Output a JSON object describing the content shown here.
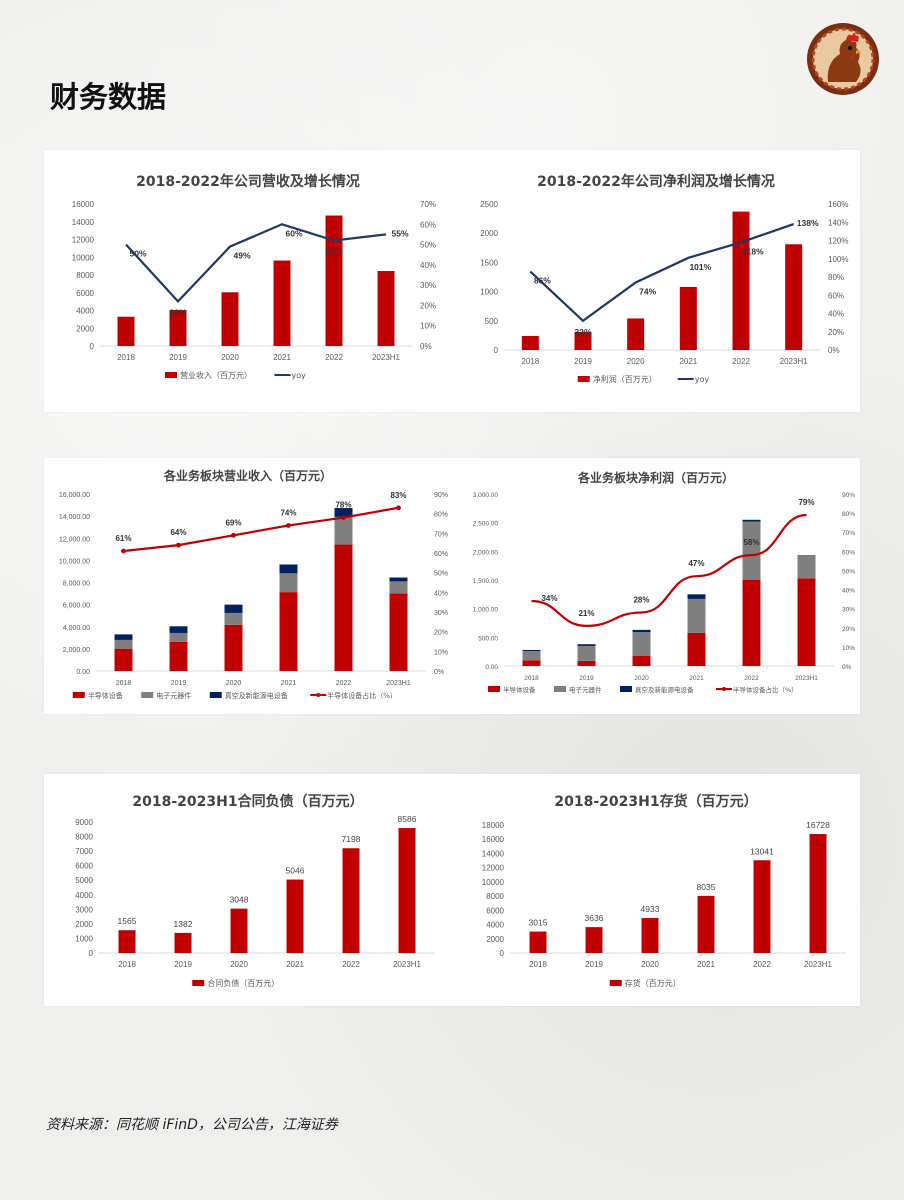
{
  "page": {
    "title": "财务数据",
    "source": "资料来源：同花顺 iFinD，公司公告，江海证券",
    "logo_icon": "rooster-seal-logo"
  },
  "colors": {
    "bar_red": "#c00000",
    "line_navy": "#1f3864",
    "line_red": "#c00000",
    "bar_grey": "#7f7f7f",
    "bar_navy": "#002060"
  },
  "chart_data": [
    {
      "id": "revenue",
      "type": "bar",
      "title": "2018-2022年公司营收及增长情况",
      "categories": [
        "2018",
        "2019",
        "2020",
        "2021",
        "2022",
        "2023H1"
      ],
      "series": [
        {
          "name": "营业收入（百万元）",
          "type": "bar",
          "axis": "left",
          "values": [
            3300,
            4050,
            6050,
            9630,
            14700,
            8450
          ]
        },
        {
          "name": "yoy",
          "type": "line",
          "axis": "right",
          "values": [
            0.5,
            0.22,
            0.49,
            0.6,
            0.52,
            0.55
          ],
          "labels": [
            "50%",
            "22%",
            "49%",
            "60%",
            "52%",
            "55%"
          ]
        }
      ],
      "y_ticks": [
        "0",
        "2000",
        "4000",
        "6000",
        "8000",
        "10000",
        "12000",
        "14000",
        "16000"
      ],
      "y2_ticks": [
        "0%",
        "10%",
        "20%",
        "30%",
        "40%",
        "50%",
        "60%",
        "70%"
      ],
      "ylim": [
        0,
        16000
      ],
      "y2lim": [
        0,
        0.7
      ],
      "legend": "bottom"
    },
    {
      "id": "profit",
      "type": "bar",
      "title": "2018-2022年公司净利润及增长情况",
      "categories": [
        "2018",
        "2019",
        "2020",
        "2021",
        "2022",
        "2023H1"
      ],
      "series": [
        {
          "name": "净利润（百万元）",
          "type": "bar",
          "axis": "left",
          "values": [
            240,
            310,
            540,
            1080,
            2370,
            1810
          ]
        },
        {
          "name": "yoy",
          "type": "line",
          "axis": "right",
          "values": [
            0.86,
            0.32,
            0.74,
            1.01,
            1.18,
            1.38
          ],
          "labels": [
            "86%",
            "32%",
            "74%",
            "101%",
            "118%",
            "138%"
          ]
        }
      ],
      "y_ticks": [
        "0",
        "500",
        "1000",
        "1500",
        "2000",
        "2500"
      ],
      "y2_ticks": [
        "0%",
        "20%",
        "40%",
        "60%",
        "80%",
        "100%",
        "120%",
        "140%",
        "160%"
      ],
      "ylim": [
        0,
        2500
      ],
      "y2lim": [
        0,
        1.6
      ],
      "legend": "bottom"
    },
    {
      "id": "segment-revenue",
      "type": "bar",
      "stacked": true,
      "title": "各业务板块营业收入（百万元）",
      "categories": [
        "2018",
        "2019",
        "2020",
        "2021",
        "2022",
        "2023H1"
      ],
      "series": [
        {
          "name": "半导体设备",
          "type": "bar",
          "axis": "left",
          "values": [
            2020,
            2640,
            4180,
            7130,
            11430,
            7000
          ]
        },
        {
          "name": "电子元器件",
          "type": "bar",
          "axis": "left",
          "values": [
            790,
            800,
            1070,
            1700,
            2500,
            1100
          ]
        },
        {
          "name": "真空及新能源电设备",
          "type": "bar",
          "axis": "left",
          "values": [
            500,
            600,
            750,
            800,
            800,
            350
          ]
        },
        {
          "name": "半导体设备占比（%）",
          "type": "line",
          "axis": "right",
          "values": [
            0.61,
            0.64,
            0.69,
            0.74,
            0.78,
            0.83
          ],
          "labels": [
            "61%",
            "64%",
            "69%",
            "74%",
            "78%",
            "83%"
          ]
        }
      ],
      "y_ticks": [
        "0.00",
        "2,000.00",
        "4,000.00",
        "6,000.00",
        "8,000.00",
        "10,000.00",
        "12,000.00",
        "14,000.00",
        "16,000.00"
      ],
      "y2_ticks": [
        "0%",
        "10%",
        "20%",
        "30%",
        "40%",
        "50%",
        "60%",
        "70%",
        "80%",
        "90%"
      ],
      "ylim": [
        0,
        16000
      ],
      "y2lim": [
        0,
        0.9
      ],
      "legend": "bottom"
    },
    {
      "id": "segment-profit",
      "type": "bar",
      "stacked": true,
      "title": "各业务板块净利润（百万元）",
      "categories": [
        "2018",
        "2019",
        "2020",
        "2021",
        "2022",
        "2023H1"
      ],
      "series": [
        {
          "name": "半导体设备",
          "type": "bar",
          "axis": "left",
          "values": [
            100,
            90,
            180,
            580,
            1500,
            1530
          ]
        },
        {
          "name": "电子元器件",
          "type": "bar",
          "axis": "left",
          "values": [
            160,
            260,
            410,
            590,
            1020,
            390
          ]
        },
        {
          "name": "真空及新能源电设备",
          "type": "bar",
          "axis": "left",
          "values": [
            20,
            30,
            40,
            80,
            30,
            10
          ]
        },
        {
          "name": "半导体设备占比（%）",
          "type": "line",
          "axis": "right",
          "values": [
            0.34,
            0.21,
            0.28,
            0.47,
            0.58,
            0.79
          ],
          "labels": [
            "34%",
            "21%",
            "28%",
            "47%",
            "58%",
            "79%"
          ]
        }
      ],
      "y_ticks": [
        "0.00",
        "500.00",
        "1,000.00",
        "1,500.00",
        "2,000.00",
        "2,500.00",
        "3,000.00"
      ],
      "y2_ticks": [
        "0%",
        "10%",
        "20%",
        "30%",
        "40%",
        "50%",
        "60%",
        "70%",
        "80%",
        "90%"
      ],
      "ylim": [
        0,
        3000
      ],
      "y2lim": [
        0,
        0.9
      ],
      "legend": "bottom"
    },
    {
      "id": "contract-liabilities",
      "type": "bar",
      "title": "2018-2023H1合同负债（百万元）",
      "categories": [
        "2018",
        "2019",
        "2020",
        "2021",
        "2022",
        "2023H1"
      ],
      "series": [
        {
          "name": "合同负债（百万元）",
          "type": "bar",
          "axis": "left",
          "values": [
            1565,
            1382,
            3048,
            5046,
            7198,
            8586
          ],
          "labels": [
            "1565",
            "1382",
            "3048",
            "5046",
            "7198",
            "8586"
          ]
        }
      ],
      "y_ticks": [
        "0",
        "1000",
        "2000",
        "3000",
        "4000",
        "5000",
        "6000",
        "7000",
        "8000",
        "9000"
      ],
      "ylim": [
        0,
        9000
      ],
      "legend": "bottom"
    },
    {
      "id": "inventory",
      "type": "bar",
      "title": "2018-2023H1存货（百万元）",
      "categories": [
        "2018",
        "2019",
        "2020",
        "2021",
        "2022",
        "2023H1"
      ],
      "series": [
        {
          "name": "存货（百万元）",
          "type": "bar",
          "axis": "left",
          "values": [
            3015,
            3636,
            4933,
            8035,
            13041,
            16728
          ],
          "labels": [
            "3015",
            "3636",
            "4933",
            "8035",
            "13041",
            "16728"
          ]
        }
      ],
      "y_ticks": [
        "0",
        "2000",
        "4000",
        "6000",
        "8000",
        "10000",
        "12000",
        "14000",
        "16000",
        "18000"
      ],
      "ylim": [
        0,
        18000
      ],
      "legend": "bottom"
    }
  ]
}
